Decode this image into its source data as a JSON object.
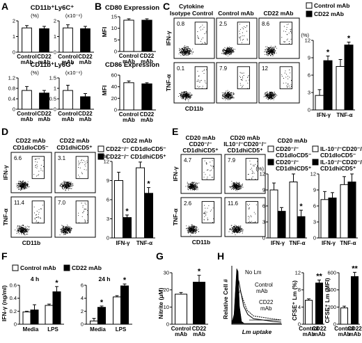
{
  "figure": {
    "panels": {
      "A": {
        "letter": "A",
        "title1": "CD11b⁺Ly6C⁺",
        "title2": "CD11b⁺Ly6G⁺",
        "unit_pct": "(%)",
        "unit_count": "(x10⁻⁶)"
      },
      "B": {
        "letter": "B",
        "title1": "CD80 Expression",
        "title2": "CD86 Expression",
        "ylabel": "MFI"
      },
      "C": {
        "letter": "C",
        "col_titles": [
          "Cytokine",
          "Isotype Control",
          "Control mAb",
          "CD22 mAb"
        ],
        "gates_ifn": [
          "0.8",
          "2.5",
          "8.6"
        ],
        "gates_tnf": [
          "0.1",
          "7.9",
          "12"
        ],
        "legend": [
          "Control mAb",
          "CD22 mAb"
        ]
      },
      "D": {
        "letter": "D",
        "col1": [
          "CD22 mAb",
          "CD1dloCD5⁻"
        ],
        "col2": [
          "CD22 mAb",
          "CD1dhiCD5⁺"
        ],
        "gates_ifn": [
          "6.6",
          "3.1"
        ],
        "gates_tnf": [
          "11.4",
          "7.0"
        ],
        "bar_title": "CD22 mAb",
        "legend": [
          "CD22⁻/⁻ CD1dloCD5⁻",
          "CD22⁻/⁻ CD1dhiCD5⁺"
        ]
      },
      "E": {
        "letter": "E",
        "col1": [
          "CD20 mAb",
          "CD20⁻/⁻",
          "CD1dhiCD5⁺"
        ],
        "col2": [
          "CD20 mAb",
          "IL10⁻/⁻CD20⁻/⁻",
          "CD1dhiCD5⁺"
        ],
        "gates_ifn": [
          "4.7",
          "7.9"
        ],
        "gates_tnf": [
          "2.6",
          "11.6"
        ],
        "bar_title": "CD20 mAb",
        "legend1": [
          "CD20⁻/⁻",
          "CD1dloCD5⁻",
          "CD20⁻/⁻",
          "CD1dhiCD5⁺"
        ],
        "legend2": [
          "IL-10⁻/⁻CD20⁻/⁻",
          "CD1dloCD5⁻",
          "IL-10⁻/⁻CD20⁻/⁻",
          "CD1dhiCD5⁺"
        ]
      },
      "F": {
        "letter": "F",
        "ylabel": "IFN-γ (ng/ml)",
        "t1": "4 h",
        "t2": "24 h",
        "legend": [
          "Control mAb",
          "CD22 mAb"
        ]
      },
      "G": {
        "letter": "G",
        "ylabel": "Nitrite (μM)"
      },
      "H": {
        "letter": "H",
        "hist_ylabel": "Relative Cell #",
        "hist_xlabel": "Lm uptake",
        "labels": [
          "No Lm",
          "Control",
          "mAb",
          "CD22",
          "mAb"
        ],
        "ylabel1": "CFSE⁺ Lm (%)",
        "ylabel2": "CFSE⁺ Lm (MFI)"
      }
    },
    "axis_labels": {
      "ifn": "IFN-γ",
      "tnf": "TNF-α",
      "cd11b": "CD11b"
    },
    "colors": {
      "open": "#ffffff",
      "filled": "#000000"
    }
  },
  "chart_data": [
    {
      "panel": "A",
      "type": "bar",
      "title": "CD11b⁺Ly6C⁺",
      "ylabel": "(%)",
      "categories": [
        "Control mAb",
        "CD22 mAb"
      ],
      "values": [
        1.55,
        1.5
      ],
      "errors": [
        0.15,
        0.15
      ],
      "ylim": [
        0,
        2
      ],
      "yticks": [
        0,
        1,
        2
      ]
    },
    {
      "panel": "A",
      "type": "bar",
      "title": "CD11b⁺Ly6C⁺",
      "ylabel": "(x10⁻⁶)",
      "categories": [
        "Control mAb",
        "CD22 mAb"
      ],
      "values": [
        1.55,
        1.5
      ],
      "errors": [
        0.2,
        0.15
      ],
      "ylim": [
        0,
        2
      ],
      "yticks": [
        0,
        1,
        2
      ]
    },
    {
      "panel": "A",
      "type": "bar",
      "title": "CD11b⁺Ly6G⁺",
      "ylabel": "(%)",
      "categories": [
        "Control mAb",
        "CD22 mAb"
      ],
      "values": [
        0.72,
        0.62
      ],
      "errors": [
        0.15,
        0.1
      ],
      "ylim": [
        0,
        1.2
      ],
      "yticks": [
        0,
        0.4,
        0.8,
        1.2
      ]
    },
    {
      "panel": "A",
      "type": "bar",
      "title": "CD11b⁺Ly6G⁺",
      "ylabel": "(x10⁻⁶)",
      "categories": [
        "Control mAb",
        "CD22 mAb"
      ],
      "values": [
        0.9,
        0.6
      ],
      "errors": [
        0.25,
        0.15
      ],
      "ylim": [
        0,
        1.5
      ],
      "yticks": [
        0,
        0.5,
        1,
        1.5
      ]
    },
    {
      "panel": "B",
      "type": "bar",
      "title": "CD80 Expression",
      "ylabel": "MFI",
      "categories": [
        "Control mAb",
        "CD22 mAb"
      ],
      "values": [
        13.5,
        13.5
      ],
      "errors": [
        0.6,
        0.6
      ],
      "ylim": [
        0,
        15
      ],
      "yticks": [
        0,
        5,
        10,
        15
      ]
    },
    {
      "panel": "B",
      "type": "bar",
      "title": "CD86 Expression",
      "ylabel": "MFI",
      "categories": [
        "Control mAb",
        "CD22 mAb"
      ],
      "values": [
        47,
        45
      ],
      "errors": [
        3,
        2
      ],
      "ylim": [
        0,
        60
      ],
      "yticks": [
        0,
        20,
        40,
        60
      ]
    },
    {
      "panel": "C",
      "type": "bar",
      "ylabel": "(%)",
      "categories": [
        "IFN-γ",
        "TNF-α"
      ],
      "series": [
        {
          "name": "Control mAb",
          "values": [
            2.5,
            7.5
          ],
          "errors": [
            1.0,
            1.2
          ]
        },
        {
          "name": "CD22 mAb",
          "values": [
            8.5,
            11.2
          ],
          "errors": [
            0.8,
            0.5
          ]
        }
      ],
      "ylim": [
        0,
        12
      ],
      "yticks": [
        0,
        3,
        6,
        9,
        12
      ],
      "sig": [
        false,
        true,
        false,
        true
      ]
    },
    {
      "panel": "D",
      "type": "bar",
      "ylabel": "(%)",
      "categories": [
        "IFN-γ",
        "TNF-α"
      ],
      "series": [
        {
          "name": "CD22⁻/⁻ CD1dloCD5⁻",
          "values": [
            9.0,
            11.0
          ],
          "errors": [
            1.3,
            0.9
          ]
        },
        {
          "name": "CD22⁻/⁻ CD1dhiCD5⁺",
          "values": [
            3.2,
            7.0
          ],
          "errors": [
            0.4,
            0.9
          ]
        }
      ],
      "ylim": [
        0,
        12
      ],
      "yticks": [
        0,
        3,
        6,
        9,
        12
      ],
      "sig": [
        false,
        true,
        false,
        true
      ]
    },
    {
      "panel": "E",
      "type": "bar",
      "ylabel": "(%)",
      "categories": [
        "IFN-γ",
        "TNF-α"
      ],
      "series": [
        {
          "name": "CD20⁻/⁻ CD1dloCD5⁻",
          "values": [
            9.0,
            10.5
          ],
          "errors": [
            1.3,
            1.5
          ]
        },
        {
          "name": "CD20⁻/⁻ CD1dhiCD5⁺",
          "values": [
            5.0,
            4.0
          ],
          "errors": [
            0.7,
            1.2
          ]
        }
      ],
      "ylim": [
        0,
        12
      ],
      "yticks": [
        0,
        3,
        6,
        9,
        12
      ],
      "sig": [
        false,
        false,
        false,
        true
      ]
    },
    {
      "panel": "E",
      "type": "bar",
      "ylabel": "(%)",
      "categories": [
        "IFN-γ",
        "TNF-α"
      ],
      "series": [
        {
          "name": "IL-10⁻/⁻CD20⁻/⁻ CD1dloCD5⁻",
          "values": [
            7.2,
            10.0
          ],
          "errors": [
            1.5,
            1.5
          ]
        },
        {
          "name": "IL-10⁻/⁻CD20⁻/⁻ CD1dhiCD5⁺",
          "values": [
            7.5,
            10.5
          ],
          "errors": [
            1.0,
            1.5
          ]
        }
      ],
      "ylim": [
        0,
        12
      ],
      "yticks": [
        0,
        3,
        6,
        9,
        12
      ],
      "sig": [
        false,
        false,
        false,
        false
      ]
    },
    {
      "panel": "F",
      "type": "bar",
      "title": "4 h",
      "ylabel": "IFN-γ (ng/ml)",
      "categories": [
        "Media",
        "LPS"
      ],
      "series": [
        {
          "name": "Control mAb",
          "values": [
            0.19,
            0.29
          ],
          "errors": [
            0.01,
            0.02
          ]
        },
        {
          "name": "CD22 mAb",
          "values": [
            0.22,
            0.5
          ],
          "errors": [
            0.08,
            0.08
          ]
        }
      ],
      "ylim": [
        0,
        0.6
      ],
      "yticks": [
        0,
        0.2,
        0.4,
        0.6
      ],
      "sig": [
        false,
        false,
        false,
        true
      ]
    },
    {
      "panel": "F",
      "type": "bar",
      "title": "24 h",
      "ylabel": "IFN-γ (ng/ml)",
      "categories": [
        "Media",
        "LPS"
      ],
      "series": [
        {
          "name": "Control mAb",
          "values": [
            0.5,
            4.2
          ],
          "errors": [
            0.4,
            0.2
          ]
        },
        {
          "name": "CD22 mAb",
          "values": [
            2.6,
            5.9
          ],
          "errors": [
            0.2,
            0.3
          ]
        }
      ],
      "ylim": [
        0,
        6
      ],
      "yticks": [
        0,
        2,
        4,
        6
      ],
      "sig": [
        false,
        true,
        false,
        true
      ]
    },
    {
      "panel": "G",
      "type": "bar",
      "ylabel": "Nitrite (μM)",
      "categories": [
        "Control mAb",
        "CD22 mAb"
      ],
      "values": [
        17.5,
        24.5
      ],
      "errors": [
        1.0,
        4.0
      ],
      "ylim": [
        0,
        30
      ],
      "yticks": [
        0,
        10,
        20,
        30
      ],
      "sig": [
        false,
        true
      ]
    },
    {
      "panel": "H",
      "type": "bar",
      "ylabel": "CFSE⁺ Lm (%)",
      "categories": [
        "Control mAb",
        "CD22 mAb"
      ],
      "values": [
        5.6,
        9.6
      ],
      "errors": [
        0.3,
        0.7
      ],
      "ylim": [
        0,
        12
      ],
      "yticks": [
        0,
        4,
        8,
        12
      ],
      "sig": [
        false,
        true
      ],
      "sig_mark": "**"
    },
    {
      "panel": "H",
      "type": "bar",
      "ylabel": "CFSE⁺ Lm (MFI)",
      "categories": [
        "Control mAb",
        "CD22 mAb"
      ],
      "values": [
        190,
        555
      ],
      "errors": [
        20,
        50
      ],
      "ylim": [
        0,
        600
      ],
      "yticks": [
        0,
        200,
        400,
        600
      ],
      "sig": [
        false,
        true
      ],
      "sig_mark": "**"
    }
  ]
}
